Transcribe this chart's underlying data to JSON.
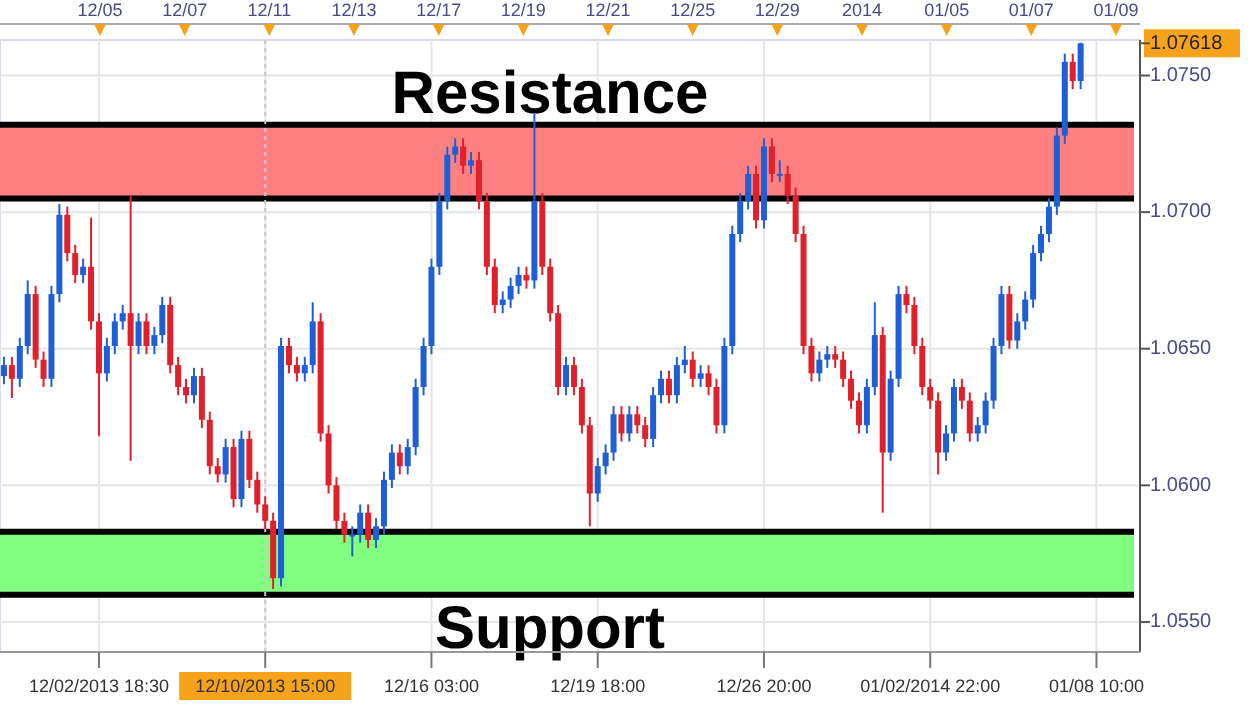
{
  "chart_data": {
    "type": "candlestick",
    "categories": [
      null,
      null,
      null,
      null,
      null,
      null,
      null,
      null,
      null,
      null,
      null,
      null,
      "12/02/2013 18:30",
      null,
      null,
      null,
      null,
      null,
      null,
      null,
      null,
      null,
      null,
      null,
      null,
      null,
      null,
      null,
      null,
      null,
      null,
      null,
      null,
      "12/10/2013 15:00",
      null,
      null,
      null,
      null,
      null,
      null,
      null,
      null,
      null,
      null,
      null,
      null,
      null,
      null,
      null,
      null,
      null,
      null,
      null,
      null,
      "12/16 03:00",
      null,
      null,
      null,
      null,
      null,
      null,
      null,
      null,
      null,
      null,
      null,
      null,
      null,
      null,
      null,
      null,
      null,
      null,
      null,
      null,
      "12/19 18:00",
      null,
      null,
      null,
      null,
      null,
      null,
      null,
      null,
      null,
      null,
      null,
      null,
      null,
      null,
      null,
      null,
      null,
      null,
      null,
      null,
      "12/26 20:00",
      null,
      null,
      null,
      null,
      null,
      null,
      null,
      null,
      null,
      null,
      null,
      null,
      null,
      null,
      null,
      null,
      null,
      null,
      null,
      null,
      "01/02/2014 22:00",
      null,
      null,
      null,
      null,
      null,
      null,
      null,
      null,
      null,
      null,
      null,
      null,
      null,
      null,
      null,
      null,
      null,
      null,
      null,
      null,
      "01/08 10:00",
      null,
      null,
      null,
      null,
      null
    ],
    "ohlc": [
      [
        1.064,
        1.0647,
        1.0637,
        1.0644
      ],
      [
        1.0644,
        1.0647,
        1.0632,
        1.0639
      ],
      [
        1.0639,
        1.0654,
        1.0636,
        1.0651
      ],
      [
        1.0651,
        1.0675,
        1.0648,
        1.067
      ],
      [
        1.067,
        1.0673,
        1.0643,
        1.0646
      ],
      [
        1.0646,
        1.0649,
        1.0636,
        1.0639
      ],
      [
        1.0639,
        1.0673,
        1.0636,
        1.067
      ],
      [
        1.067,
        1.0703,
        1.0667,
        1.0699
      ],
      [
        1.0699,
        1.0702,
        1.0682,
        1.0685
      ],
      [
        1.0685,
        1.0688,
        1.0674,
        1.0677
      ],
      [
        1.0677,
        1.0683,
        1.0674,
        1.068
      ],
      [
        1.068,
        1.0698,
        1.0657,
        1.066
      ],
      [
        1.066,
        1.0663,
        1.0618,
        1.0641
      ],
      [
        1.0641,
        1.0654,
        1.0638,
        1.0651
      ],
      [
        1.0651,
        1.0663,
        1.0648,
        1.066
      ],
      [
        1.066,
        1.0666,
        1.0657,
        1.0663
      ],
      [
        1.0663,
        1.0706,
        1.0609,
        1.0651
      ],
      [
        1.0651,
        1.0663,
        1.0648,
        1.066
      ],
      [
        1.066,
        1.0663,
        1.0648,
        1.0651
      ],
      [
        1.0651,
        1.0658,
        1.0648,
        1.0655
      ],
      [
        1.0655,
        1.0669,
        1.0652,
        1.0666
      ],
      [
        1.0666,
        1.0669,
        1.0641,
        1.0644
      ],
      [
        1.0644,
        1.0647,
        1.0633,
        1.0636
      ],
      [
        1.0636,
        1.0639,
        1.063,
        1.0633
      ],
      [
        1.0633,
        1.0643,
        1.063,
        1.064
      ],
      [
        1.064,
        1.0643,
        1.0621,
        1.0624
      ],
      [
        1.0624,
        1.0627,
        1.0604,
        1.0607
      ],
      [
        1.0607,
        1.061,
        1.0601,
        1.0604
      ],
      [
        1.0604,
        1.0617,
        1.0601,
        1.0614
      ],
      [
        1.0614,
        1.0617,
        1.0592,
        1.0595
      ],
      [
        1.0595,
        1.062,
        1.0592,
        1.0617
      ],
      [
        1.0617,
        1.062,
        1.0599,
        1.0602
      ],
      [
        1.0602,
        1.0605,
        1.059,
        1.0593
      ],
      [
        1.0593,
        1.0596,
        1.0584,
        1.0587
      ],
      [
        1.0587,
        1.059,
        1.0562,
        1.0566
      ],
      [
        1.0566,
        1.0654,
        1.0563,
        1.0651
      ],
      [
        1.0651,
        1.0654,
        1.0641,
        1.0644
      ],
      [
        1.0644,
        1.0647,
        1.0638,
        1.0641
      ],
      [
        1.0641,
        1.0647,
        1.0638,
        1.0644
      ],
      [
        1.0644,
        1.0667,
        1.0641,
        1.066
      ],
      [
        1.066,
        1.0663,
        1.0616,
        1.0619
      ],
      [
        1.0619,
        1.0622,
        1.0597,
        1.06
      ],
      [
        1.06,
        1.0603,
        1.0584,
        1.0587
      ],
      [
        1.0587,
        1.059,
        1.0579,
        1.0582
      ],
      [
        1.0582,
        1.0585,
        1.0574,
        1.0582
      ],
      [
        1.0582,
        1.0593,
        1.0579,
        1.059
      ],
      [
        1.059,
        1.0593,
        1.0577,
        1.058
      ],
      [
        1.058,
        1.0588,
        1.0577,
        1.0585
      ],
      [
        1.0585,
        1.0605,
        1.0582,
        1.0602
      ],
      [
        1.0602,
        1.0615,
        1.0599,
        1.0612
      ],
      [
        1.0612,
        1.0615,
        1.0604,
        1.0607
      ],
      [
        1.0607,
        1.0617,
        1.0604,
        1.0614
      ],
      [
        1.0614,
        1.0639,
        1.0611,
        1.0636
      ],
      [
        1.0636,
        1.0654,
        1.0633,
        1.0651
      ],
      [
        1.0651,
        1.0683,
        1.0648,
        1.068
      ],
      [
        1.068,
        1.0707,
        1.0677,
        1.0704
      ],
      [
        1.0704,
        1.0724,
        1.0701,
        1.0721
      ],
      [
        1.0721,
        1.0727,
        1.0718,
        1.0724
      ],
      [
        1.0724,
        1.0727,
        1.0714,
        1.0717
      ],
      [
        1.0717,
        1.0722,
        1.0714,
        1.0719
      ],
      [
        1.0719,
        1.0722,
        1.0701,
        1.0704
      ],
      [
        1.0704,
        1.0707,
        1.0677,
        1.068
      ],
      [
        1.068,
        1.0683,
        1.0663,
        1.0666
      ],
      [
        1.0666,
        1.0671,
        1.0663,
        1.0668
      ],
      [
        1.0668,
        1.0676,
        1.0665,
        1.0673
      ],
      [
        1.0673,
        1.068,
        1.067,
        1.0677
      ],
      [
        1.0677,
        1.068,
        1.0672,
        1.0675
      ],
      [
        1.0675,
        1.0736,
        1.0672,
        1.0704
      ],
      [
        1.0704,
        1.0707,
        1.0677,
        1.068
      ],
      [
        1.068,
        1.0683,
        1.066,
        1.0663
      ],
      [
        1.0663,
        1.0666,
        1.0633,
        1.0636
      ],
      [
        1.0636,
        1.0647,
        1.0633,
        1.0644
      ],
      [
        1.0644,
        1.0647,
        1.0633,
        1.0636
      ],
      [
        1.0636,
        1.0639,
        1.0619,
        1.0622
      ],
      [
        1.0622,
        1.0625,
        1.0585,
        1.0597
      ],
      [
        1.0597,
        1.061,
        1.0594,
        1.0607
      ],
      [
        1.0607,
        1.0615,
        1.0604,
        1.0612
      ],
      [
        1.0612,
        1.0629,
        1.0609,
        1.0626
      ],
      [
        1.0626,
        1.0629,
        1.0616,
        1.0619
      ],
      [
        1.0619,
        1.0629,
        1.0616,
        1.0626
      ],
      [
        1.0626,
        1.0629,
        1.0619,
        1.0622
      ],
      [
        1.0622,
        1.0625,
        1.0614,
        1.0617
      ],
      [
        1.0617,
        1.0636,
        1.0614,
        1.0633
      ],
      [
        1.0633,
        1.0642,
        1.063,
        1.0639
      ],
      [
        1.0639,
        1.0642,
        1.063,
        1.0633
      ],
      [
        1.0633,
        1.0647,
        1.063,
        1.0644
      ],
      [
        1.0644,
        1.0651,
        1.0641,
        1.0646
      ],
      [
        1.0646,
        1.0649,
        1.0636,
        1.0639
      ],
      [
        1.0639,
        1.0644,
        1.0636,
        1.0641
      ],
      [
        1.0641,
        1.0644,
        1.0633,
        1.0636
      ],
      [
        1.0636,
        1.0639,
        1.0619,
        1.0622
      ],
      [
        1.0622,
        1.0654,
        1.0619,
        1.0651
      ],
      [
        1.0651,
        1.0695,
        1.0648,
        1.0692
      ],
      [
        1.0692,
        1.0707,
        1.0689,
        1.0704
      ],
      [
        1.0704,
        1.0717,
        1.0701,
        1.0714
      ],
      [
        1.0714,
        1.0717,
        1.0694,
        1.0697
      ],
      [
        1.0697,
        1.0727,
        1.0694,
        1.0724
      ],
      [
        1.0724,
        1.0727,
        1.0711,
        1.0714
      ],
      [
        1.0714,
        1.0719,
        1.0711,
        1.0714
      ],
      [
        1.0714,
        1.0717,
        1.0703,
        1.0706
      ],
      [
        1.0706,
        1.0709,
        1.0689,
        1.0692
      ],
      [
        1.0692,
        1.0695,
        1.0648,
        1.0651
      ],
      [
        1.0651,
        1.0654,
        1.0638,
        1.0641
      ],
      [
        1.0641,
        1.0649,
        1.0638,
        1.0646
      ],
      [
        1.0646,
        1.0651,
        1.0643,
        1.0648
      ],
      [
        1.0648,
        1.0651,
        1.0643,
        1.0646
      ],
      [
        1.0646,
        1.0649,
        1.0636,
        1.0639
      ],
      [
        1.0639,
        1.0642,
        1.0628,
        1.0631
      ],
      [
        1.0631,
        1.0634,
        1.0619,
        1.0622
      ],
      [
        1.0622,
        1.0639,
        1.0619,
        1.0636
      ],
      [
        1.0636,
        1.0667,
        1.0633,
        1.0655
      ],
      [
        1.0655,
        1.0658,
        1.059,
        1.0612
      ],
      [
        1.0612,
        1.0642,
        1.0609,
        1.0639
      ],
      [
        1.0639,
        1.0673,
        1.0636,
        1.067
      ],
      [
        1.067,
        1.0673,
        1.0663,
        1.0666
      ],
      [
        1.0666,
        1.0669,
        1.0648,
        1.0651
      ],
      [
        1.0651,
        1.0654,
        1.0633,
        1.0636
      ],
      [
        1.0636,
        1.0639,
        1.0628,
        1.0631
      ],
      [
        1.0631,
        1.0634,
        1.0604,
        1.0612
      ],
      [
        1.0612,
        1.0622,
        1.0609,
        1.0619
      ],
      [
        1.0619,
        1.0639,
        1.0616,
        1.0636
      ],
      [
        1.0636,
        1.0639,
        1.0628,
        1.0631
      ],
      [
        1.0631,
        1.0634,
        1.0616,
        1.0619
      ],
      [
        1.0619,
        1.0625,
        1.0616,
        1.0622
      ],
      [
        1.0622,
        1.0634,
        1.0619,
        1.0631
      ],
      [
        1.0631,
        1.0654,
        1.0628,
        1.0651
      ],
      [
        1.0651,
        1.0673,
        1.0648,
        1.067
      ],
      [
        1.067,
        1.0673,
        1.065,
        1.0653
      ],
      [
        1.0653,
        1.0663,
        1.065,
        1.066
      ],
      [
        1.066,
        1.0671,
        1.0657,
        1.0668
      ],
      [
        1.0668,
        1.0688,
        1.0665,
        1.0685
      ],
      [
        1.0685,
        1.0695,
        1.0682,
        1.0692
      ],
      [
        1.0692,
        1.0705,
        1.0689,
        1.0702
      ],
      [
        1.0702,
        1.0731,
        1.0699,
        1.0728
      ],
      [
        1.0728,
        1.0758,
        1.0725,
        1.0755
      ],
      [
        1.0755,
        1.0758,
        1.0745,
        1.0748
      ],
      [
        1.0748,
        1.0762,
        1.0745,
        1.07618
      ],
      null,
      null,
      null,
      null,
      null,
      null,
      null
    ],
    "annotations": [
      "12/05",
      "12/07",
      "12/11",
      "12/13",
      "12/17",
      "12/19",
      "12/21",
      "12/25",
      "12/29",
      "2014",
      "01/05",
      "01/07",
      "01/09"
    ],
    "ylim": [
      1.0539,
      1.0763
    ],
    "yticks": [
      {
        "value": 1.055,
        "label": "1.0550"
      },
      {
        "value": 1.06,
        "label": "1.0600"
      },
      {
        "value": 1.065,
        "label": "1.0650"
      },
      {
        "value": 1.07,
        "label": "1.0700"
      },
      {
        "value": 1.075,
        "label": "1.0750"
      },
      {
        "value": 1.07618,
        "label": "1.07618"
      }
    ],
    "grid": true,
    "bands": [
      {
        "axis": "y",
        "from": 1.0705,
        "to": 1.0732,
        "label": "Resistance",
        "color": "#ff8080"
      },
      {
        "axis": "y",
        "from": 1.056,
        "to": 1.0583,
        "label": "Support",
        "color": "#80ff80"
      }
    ],
    "ref_lines": [
      {
        "axis": "x",
        "value": "12/10/2013 15:00",
        "color": "#c8c8c8",
        "line_style": "dotted"
      }
    ]
  }
}
